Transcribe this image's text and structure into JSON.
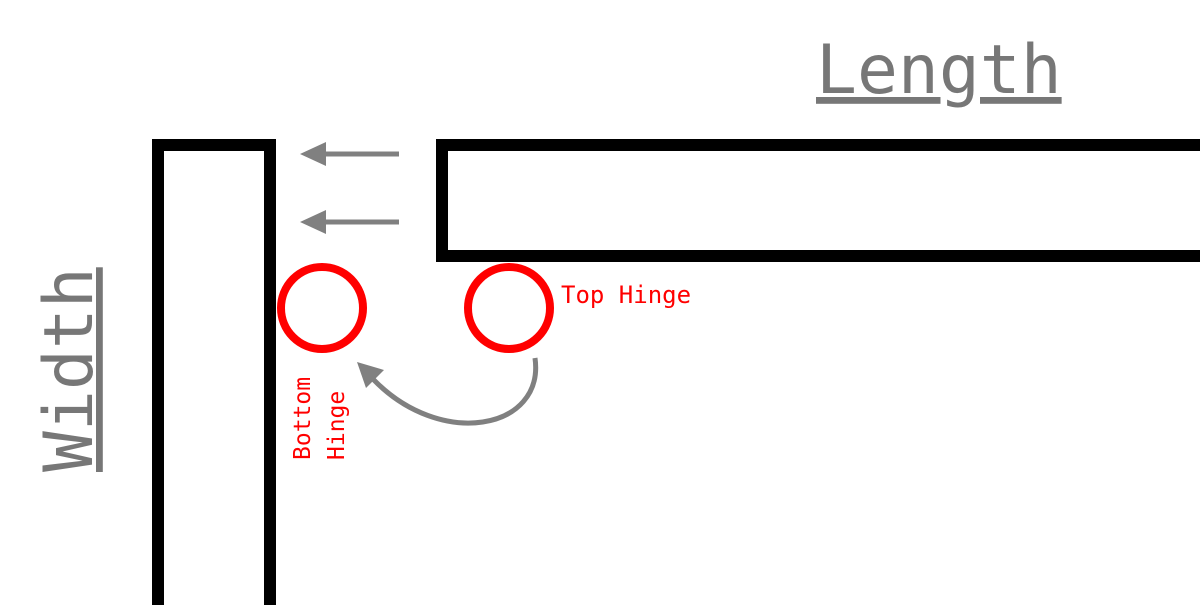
{
  "labels": {
    "length": "Length",
    "width": "Width",
    "top_hinge": "Top Hinge",
    "bottom_hinge_line1": "Bottom",
    "bottom_hinge_line2": "Hinge"
  },
  "colors": {
    "outline": "#000000",
    "hinge": "#ff0000",
    "arrow": "#808080",
    "dimension_text": "#777777"
  }
}
